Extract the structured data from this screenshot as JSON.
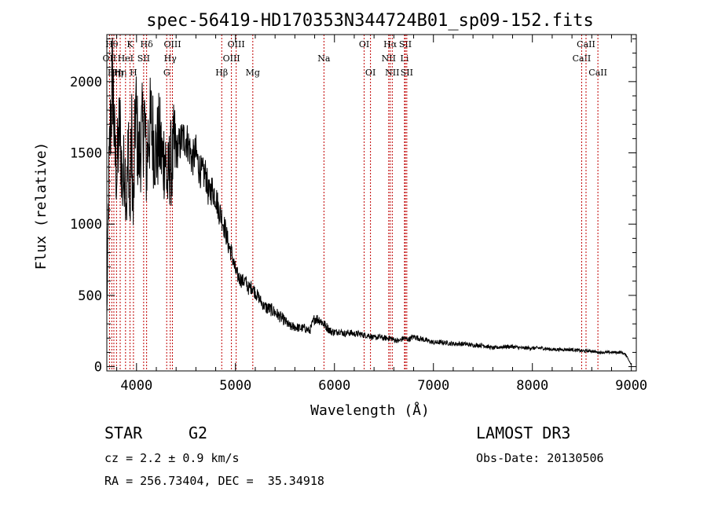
{
  "chart_data": {
    "type": "line",
    "title": "spec-56419-HD170353N344724B01_sp09-152.fits",
    "xlabel": "Wavelength (Å)",
    "ylabel": "Flux (relative)",
    "xlim": [
      3700,
      9050
    ],
    "ylim": [
      -30,
      2330
    ],
    "x_ticks": [
      4000,
      5000,
      6000,
      7000,
      8000,
      9000
    ],
    "y_ticks": [
      0,
      500,
      1000,
      1500,
      2000
    ],
    "tick_labels_x": [
      "4000",
      "5000",
      "6000",
      "7000",
      "8000",
      "9000"
    ],
    "tick_labels_y": [
      "0",
      "500",
      "1000",
      "1500",
      "2000"
    ],
    "series": [
      {
        "name": "flux",
        "x": [
          3700,
          3720,
          3740,
          3760,
          3780,
          3800,
          3830,
          3860,
          3880,
          3900,
          3920,
          3933,
          3950,
          3968,
          3990,
          4020,
          4050,
          4080,
          4101,
          4120,
          4150,
          4180,
          4200,
          4230,
          4260,
          4290,
          4310,
          4340,
          4360,
          4380,
          4400,
          4430,
          4460,
          4500,
          4530,
          4560,
          4600,
          4630,
          4660,
          4700,
          4730,
          4760,
          4800,
          4830,
          4861,
          4880,
          4900,
          4930,
          4960,
          4990,
          5010,
          5040,
          5070,
          5100,
          5130,
          5170,
          5200,
          5240,
          5280,
          5320,
          5360,
          5400,
          5450,
          5500,
          5550,
          5600,
          5650,
          5700,
          5750,
          5800,
          5850,
          5890,
          5920,
          5960,
          6000,
          6050,
          6100,
          6150,
          6200,
          6250,
          6300,
          6350,
          6400,
          6450,
          6500,
          6563,
          6600,
          6650,
          6700,
          6750,
          6800,
          6850,
          6900,
          6950,
          7000,
          7100,
          7200,
          7300,
          7400,
          7500,
          7600,
          7700,
          7800,
          7900,
          8000,
          8100,
          8200,
          8300,
          8400,
          8500,
          8542,
          8600,
          8662,
          8700,
          8800,
          8900,
          8950,
          9000
        ],
        "values": [
          350,
          1300,
          1750,
          2050,
          1500,
          1350,
          1700,
          1250,
          1450,
          1150,
          1600,
          950,
          1700,
          1000,
          1850,
          1450,
          1600,
          1750,
          1350,
          1650,
          1700,
          1550,
          1500,
          1600,
          1450,
          1500,
          1250,
          1450,
          1400,
          1550,
          1500,
          1550,
          1600,
          1600,
          1550,
          1450,
          1500,
          1400,
          1350,
          1350,
          1200,
          1250,
          1200,
          1100,
          1050,
          1000,
          950,
          850,
          800,
          700,
          650,
          620,
          600,
          600,
          550,
          560,
          520,
          480,
          430,
          410,
          400,
          380,
          350,
          320,
          280,
          280,
          270,
          270,
          250,
          340,
          330,
          300,
          280,
          250,
          240,
          250,
          230,
          240,
          230,
          230,
          220,
          220,
          200,
          210,
          200,
          200,
          190,
          180,
          200,
          190,
          210,
          200,
          190,
          180,
          170,
          170,
          160,
          160,
          150,
          150,
          130,
          140,
          140,
          130,
          130,
          130,
          120,
          120,
          120,
          110,
          110,
          110,
          100,
          100,
          100,
          100,
          80,
          10
        ]
      }
    ],
    "line_markers": [
      {
        "x": 3727,
        "label": "OII",
        "row": 1
      },
      {
        "x": 3750,
        "label": "Hθ",
        "row": 0
      },
      {
        "x": 3771,
        "label": "Hη",
        "row": 2
      },
      {
        "x": 3798,
        "label": "Hη",
        "row": 2
      },
      {
        "x": 3835,
        "label": "Hη",
        "row": 2
      },
      {
        "x": 3889,
        "label": "HeI",
        "row": 1
      },
      {
        "x": 3934,
        "label": "K",
        "row": 0
      },
      {
        "x": 3969,
        "label": "H",
        "row": 2
      },
      {
        "x": 4072,
        "label": "SII",
        "row": 1
      },
      {
        "x": 4102,
        "label": "Hδ",
        "row": 0
      },
      {
        "x": 4305,
        "label": "G",
        "row": 2
      },
      {
        "x": 4341,
        "label": "Hγ",
        "row": 1
      },
      {
        "x": 4363,
        "label": "OIII",
        "row": 0
      },
      {
        "x": 4861,
        "label": "Hβ",
        "row": 2
      },
      {
        "x": 4959,
        "label": "OIII",
        "row": 1
      },
      {
        "x": 5007,
        "label": "OIII",
        "row": 0
      },
      {
        "x": 5175,
        "label": "Mg",
        "row": 2
      },
      {
        "x": 5894,
        "label": "Na",
        "row": 1
      },
      {
        "x": 6300,
        "label": "OI",
        "row": 0
      },
      {
        "x": 6364,
        "label": "OI",
        "row": 2
      },
      {
        "x": 6548,
        "label": "NII",
        "row": 1
      },
      {
        "x": 6563,
        "label": "Hα",
        "row": 0
      },
      {
        "x": 6584,
        "label": "NII",
        "row": 2
      },
      {
        "x": 6708,
        "label": "Li",
        "row": 1
      },
      {
        "x": 6716,
        "label": "SII",
        "row": 0
      },
      {
        "x": 6731,
        "label": "SII",
        "row": 2
      },
      {
        "x": 8498,
        "label": "CaII",
        "row": 1
      },
      {
        "x": 8542,
        "label": "CaII",
        "row": 0
      },
      {
        "x": 8662,
        "label": "CaII",
        "row": 2
      }
    ],
    "grid": false,
    "legend": "none"
  },
  "info": {
    "object_class": "STAR",
    "subclass": "G2",
    "survey": "LAMOST DR3",
    "redshift": "cz = 2.2 ± 0.9 km/s",
    "obs_date": "Obs-Date: 20130506",
    "coords": "RA = 256.73404, DEC =  35.34918"
  },
  "colors": {
    "line_marker": "#c00000",
    "spectrum": "#000000"
  }
}
